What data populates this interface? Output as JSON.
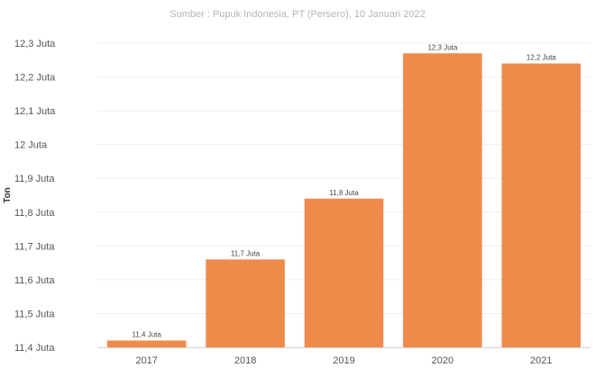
{
  "source_text": "Sumber : Pupuk Indonesia, PT (Persero), 10 Januari 2022",
  "chart_data": {
    "type": "bar",
    "categories": [
      "2017",
      "2018",
      "2019",
      "2020",
      "2021"
    ],
    "values": [
      11.42,
      11.66,
      11.84,
      12.27,
      12.24
    ],
    "data_labels": [
      "11,4 Juta",
      "11,7 Juta",
      "11,8 Juta",
      "12,3 Juta",
      "12,2 Juta"
    ],
    "ylabel": "Ton",
    "xlabel": "",
    "ylim": [
      11.4,
      12.3
    ],
    "yticks": [
      11.4,
      11.5,
      11.6,
      11.7,
      11.8,
      11.9,
      12.0,
      12.1,
      12.2,
      12.3
    ],
    "ytick_labels": [
      "11,4 Juta",
      "11,5 Juta",
      "11,6 Juta",
      "11,7 Juta",
      "11,8 Juta",
      "11,9 Juta",
      "12 Juta",
      "12,1 Juta",
      "12,2 Juta",
      "12,3 Juta"
    ],
    "grid": true,
    "bar_color": "#f08a4b"
  }
}
